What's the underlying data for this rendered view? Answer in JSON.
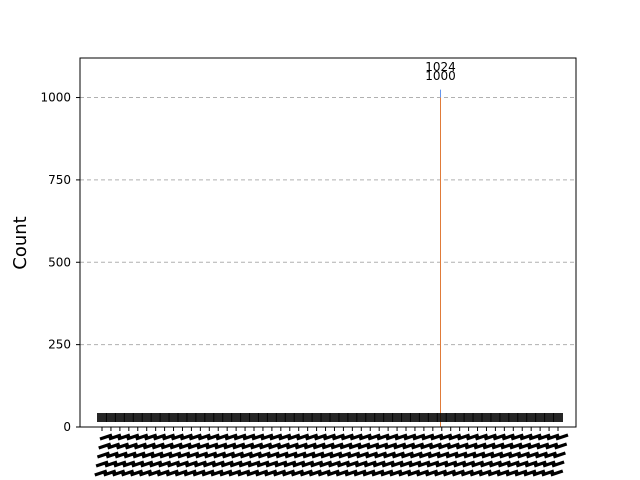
{
  "chart_data": {
    "type": "bar",
    "title": "",
    "xlabel": "",
    "ylabel": "Count",
    "ylim": [
      0,
      1120
    ],
    "yticks": [
      0,
      250,
      500,
      750,
      1000
    ],
    "grid": true,
    "legend": "none",
    "tick_label_rotation": 70,
    "colors": {
      "series_a": "#6495ED",
      "series_b": "#E07B39",
      "grid": "#b0b0b0"
    },
    "annotations": [
      "1024",
      "1000"
    ],
    "series": [
      {
        "values": [
          1024
        ],
        "highlight_index": 0
      },
      {
        "values": [
          1000
        ],
        "highlight_index": 0
      }
    ]
  }
}
